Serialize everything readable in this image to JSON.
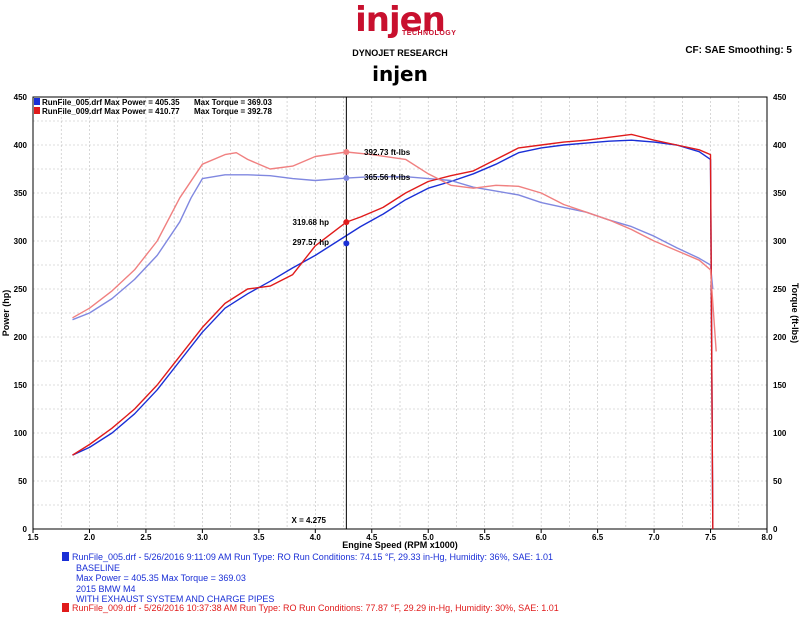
{
  "header": {
    "logo_text": "injen",
    "logo_sub": "TECHNOLOGY",
    "research": "DYNOJET RESEARCH",
    "cf": "CF: SAE  Smoothing: 5",
    "title": "injen"
  },
  "legend": {
    "run1": {
      "file": "RunFile_005.drf Max Power = 405.35",
      "torque": "Max Torque = 369.03"
    },
    "run2": {
      "file": "RunFile_009.drf Max Power = 410.77",
      "torque": "Max Torque = 392.78"
    }
  },
  "colors": {
    "run1_power": "#1a2fd6",
    "run1_torque": "#8088e0",
    "run2_power": "#e01b1b",
    "run2_torque": "#f08080"
  },
  "annotations": {
    "tq2": "392.73 ft-lbs",
    "tq1": "365.56 ft-lbs",
    "hp2": "319.68 hp",
    "hp1": "297.57 hp",
    "cursor": "X = 4.275"
  },
  "run_info": {
    "run1": {
      "line1": "RunFile_005.drf - 5/26/2016 9:11:09 AM  Run Type: RO  Run Conditions: 74.15 °F, 29.33 in-Hg,  Humidity:  36%, SAE: 1.01",
      "line2": "BASELINE",
      "line3": "Max Power = 405.35   Max Torque = 369.03",
      "line4": "2015 BMW M4",
      "line5": "WITH EXHAUST SYSTEM AND CHARGE PIPES"
    },
    "run2": {
      "line1": "RunFile_009.drf - 5/26/2016 10:37:38 AM  Run Type: RO  Run Conditions: 77.87 °F, 29.29 in-Hg,  Humidity:  30%, SAE: 1.01"
    }
  },
  "chart_data": {
    "type": "line",
    "xlabel": "Engine Speed (RPM x1000)",
    "ylabel": "Power (hp)",
    "y2label": "Torque (ft-lbs)",
    "xlim": [
      1.5,
      8.0
    ],
    "ylim": [
      0,
      450
    ],
    "x_ticks": [
      "1.5",
      "2.0",
      "2.5",
      "3.0",
      "3.5",
      "4.0",
      "4.5",
      "5.0",
      "5.5",
      "6.0",
      "6.5",
      "7.0",
      "7.5",
      "8.0"
    ],
    "y_ticks": [
      "0",
      "50",
      "100",
      "150",
      "200",
      "250",
      "300",
      "350",
      "400",
      "450"
    ],
    "cursor_x": 4.275,
    "grid": true,
    "series": [
      {
        "name": "RunFile_005.drf Max Power = 405.35",
        "key": "run1_power",
        "x": [
          1.85,
          2.0,
          2.2,
          2.4,
          2.6,
          2.8,
          3.0,
          3.2,
          3.4,
          3.6,
          3.8,
          4.0,
          4.2,
          4.4,
          4.6,
          4.8,
          5.0,
          5.2,
          5.4,
          5.6,
          5.8,
          6.0,
          6.2,
          6.4,
          6.6,
          6.8,
          7.0,
          7.2,
          7.4,
          7.5,
          7.52
        ],
        "y": [
          77,
          85,
          100,
          120,
          145,
          175,
          205,
          230,
          245,
          258,
          272,
          285,
          300,
          315,
          328,
          343,
          355,
          362,
          370,
          380,
          392,
          397,
          400,
          402,
          404,
          405,
          403,
          400,
          393,
          385,
          0
        ]
      },
      {
        "name": "RunFile_005.drf Max Torque = 369.03",
        "key": "run1_torque",
        "x": [
          1.85,
          2.0,
          2.2,
          2.4,
          2.6,
          2.8,
          2.9,
          3.0,
          3.2,
          3.4,
          3.6,
          3.8,
          4.0,
          4.275,
          4.5,
          4.8,
          5.0,
          5.2,
          5.4,
          5.6,
          5.8,
          6.0,
          6.2,
          6.4,
          6.6,
          6.8,
          7.0,
          7.2,
          7.4,
          7.5,
          7.52
        ],
        "y": [
          218,
          225,
          240,
          260,
          285,
          320,
          345,
          365,
          369,
          369,
          368,
          365,
          363,
          365.56,
          367,
          367,
          365,
          363,
          356,
          352,
          348,
          340,
          335,
          330,
          322,
          315,
          305,
          293,
          282,
          275,
          250
        ]
      },
      {
        "name": "RunFile_009.drf Max Power = 410.77",
        "key": "run2_power",
        "x": [
          1.85,
          2.0,
          2.2,
          2.4,
          2.6,
          2.8,
          3.0,
          3.2,
          3.4,
          3.6,
          3.8,
          4.0,
          4.275,
          4.4,
          4.6,
          4.8,
          5.0,
          5.2,
          5.4,
          5.6,
          5.8,
          6.0,
          6.2,
          6.4,
          6.6,
          6.8,
          7.0,
          7.2,
          7.4,
          7.5,
          7.52
        ],
        "y": [
          77,
          88,
          105,
          125,
          150,
          180,
          210,
          235,
          250,
          253,
          265,
          295,
          319.68,
          325,
          335,
          350,
          362,
          368,
          373,
          385,
          397,
          400,
          403,
          405,
          408,
          411,
          405,
          400,
          395,
          390,
          0
        ]
      },
      {
        "name": "RunFile_009.drf Max Torque = 392.78",
        "key": "run2_torque",
        "x": [
          1.85,
          2.0,
          2.2,
          2.4,
          2.6,
          2.8,
          3.0,
          3.2,
          3.3,
          3.4,
          3.6,
          3.8,
          4.0,
          4.275,
          4.5,
          4.8,
          5.0,
          5.2,
          5.4,
          5.6,
          5.8,
          6.0,
          6.2,
          6.4,
          6.6,
          6.8,
          7.0,
          7.2,
          7.4,
          7.5,
          7.55
        ],
        "y": [
          220,
          230,
          248,
          270,
          300,
          345,
          380,
          390,
          392,
          385,
          375,
          378,
          388,
          392.73,
          390,
          385,
          370,
          358,
          355,
          358,
          357,
          350,
          338,
          330,
          322,
          312,
          300,
          290,
          280,
          270,
          185
        ]
      }
    ],
    "points": [
      {
        "x": 4.275,
        "y": 392.73,
        "key": "run2_torque"
      },
      {
        "x": 4.275,
        "y": 365.56,
        "key": "run1_torque"
      },
      {
        "x": 4.275,
        "y": 319.68,
        "key": "run2_power"
      },
      {
        "x": 4.275,
        "y": 297.57,
        "key": "run1_power"
      }
    ]
  }
}
